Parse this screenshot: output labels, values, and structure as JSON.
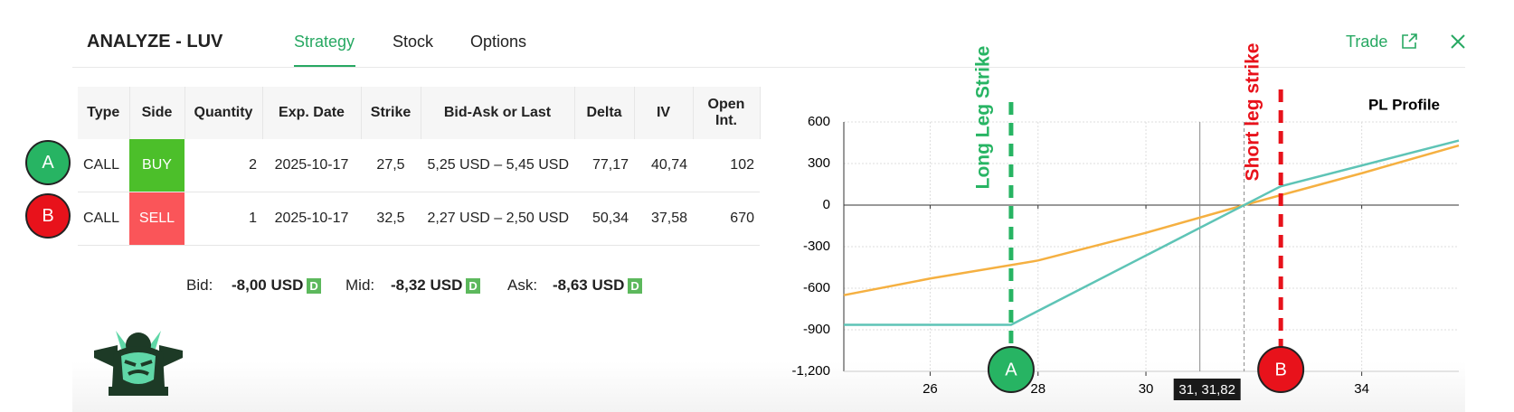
{
  "header": {
    "title": "ANALYZE - LUV",
    "tabs": [
      "Strategy",
      "Stock",
      "Options"
    ],
    "trade": "Trade"
  },
  "table": {
    "columns": [
      "Type",
      "Side",
      "Quantity",
      "Exp. Date",
      "Strike",
      "Bid-Ask or Last",
      "Delta",
      "IV",
      "Open Int."
    ],
    "rows": [
      [
        "CALL",
        "BUY",
        "2",
        "2025-10-17",
        "27,5",
        "5,25 USD – 5,45 USD",
        "77,17",
        "40,74",
        "102"
      ],
      [
        "CALL",
        "SELL",
        "1",
        "2025-10-17",
        "32,5",
        "2,27 USD – 2,50 USD",
        "50,34",
        "37,58",
        "670"
      ]
    ],
    "row_markers": [
      "A",
      "B"
    ]
  },
  "quotes": [
    {
      "label": "Bid:",
      "value": "-8,00 USD",
      "badge": "D"
    },
    {
      "label": "Mid:",
      "value": "-8,32 USD",
      "badge": "D"
    },
    {
      "label": "Ask:",
      "value": "-8,63 USD",
      "badge": "D"
    }
  ],
  "chart_data": {
    "type": "line",
    "title": "PL Profile",
    "xlim": [
      24.4,
      35.8
    ],
    "xticks": [
      26,
      28,
      30,
      34
    ],
    "ylim": [
      -1200,
      600
    ],
    "yticks": [
      {
        "value": -1200,
        "label": "-1,200"
      },
      -900,
      -600,
      -300,
      0,
      300,
      600
    ],
    "grid": true,
    "series": [
      {
        "color": "#f5b041",
        "x": [
          24.4,
          26,
          28,
          30,
          31.82,
          34,
          35.8
        ],
        "values": [
          -650,
          -530,
          -400,
          -200,
          0,
          230,
          430
        ]
      },
      {
        "color": "#5ec4b6",
        "x": [
          24.4,
          27.5,
          32.5,
          35.8
        ],
        "values": [
          -864,
          -864,
          136,
          466
        ]
      }
    ],
    "strikes": [
      {
        "label": "Long Leg Strike",
        "x": 27.5,
        "marker": "A",
        "color": "#27b463"
      },
      {
        "label": "Short leg strike",
        "x": 32.5,
        "marker": "B",
        "color": "#e8121b"
      }
    ],
    "cursor": {
      "x": 31,
      "breakeven": 31.82,
      "label": "31, 31,82"
    }
  }
}
